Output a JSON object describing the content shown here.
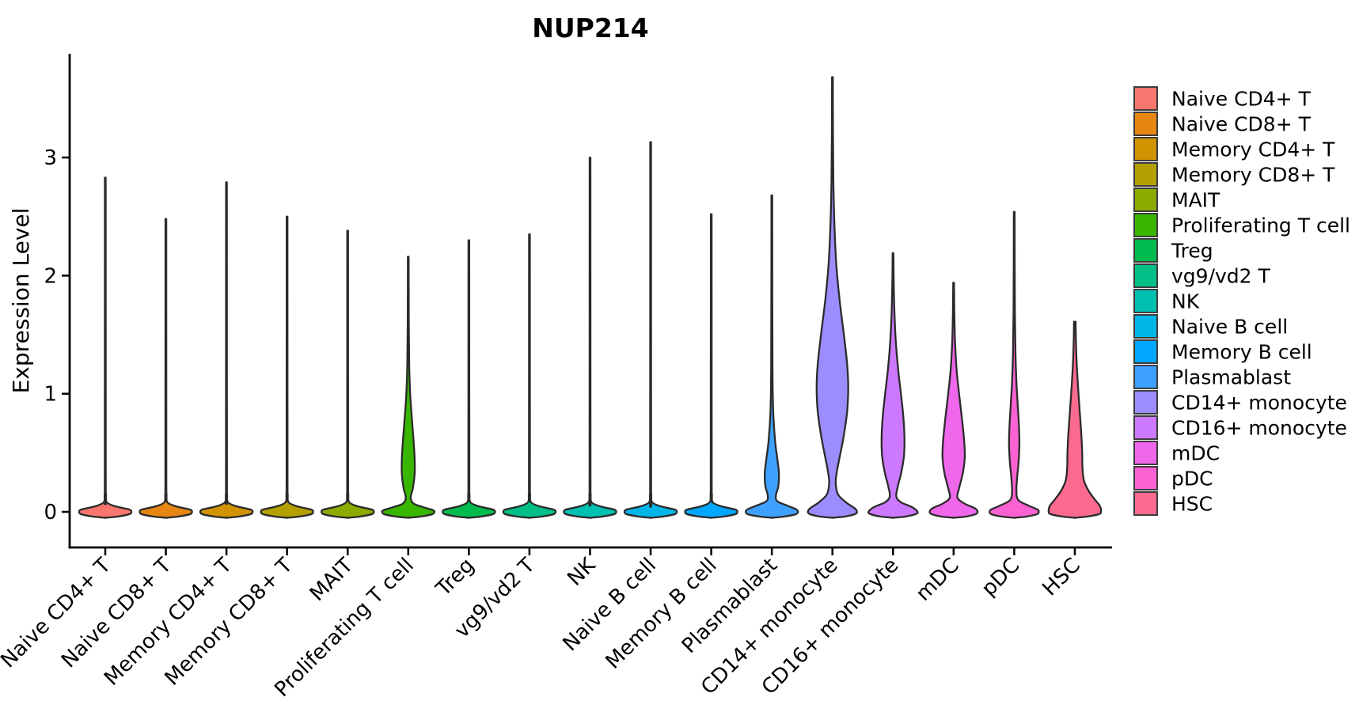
{
  "title": "NUP214",
  "axes": {
    "y_label": "Expression Level",
    "y_ticks": [
      "0",
      "1",
      "2",
      "3"
    ]
  },
  "legend": {
    "position": "right",
    "items": [
      {
        "label": "Naive CD4+ T",
        "color": "#F8766D"
      },
      {
        "label": "Naive CD8+ T",
        "color": "#E68613"
      },
      {
        "label": "Memory CD4+ T",
        "color": "#D19300"
      },
      {
        "label": "Memory CD8+ T",
        "color": "#B3A000"
      },
      {
        "label": "MAIT",
        "color": "#8CAB00"
      },
      {
        "label": "Proliferating T cell",
        "color": "#39B600"
      },
      {
        "label": "Treg",
        "color": "#00BB4E"
      },
      {
        "label": "vg9/vd2 T",
        "color": "#00C087"
      },
      {
        "label": "NK",
        "color": "#00C0B2"
      },
      {
        "label": "Naive B cell",
        "color": "#00B5E8"
      },
      {
        "label": "Memory B cell",
        "color": "#00A7FF"
      },
      {
        "label": "Plasmablast",
        "color": "#3FA1FF"
      },
      {
        "label": "CD14+ monocyte",
        "color": "#9C8DFF"
      },
      {
        "label": "CD16+ monocyte",
        "color": "#CD79FF"
      },
      {
        "label": "mDC",
        "color": "#EF67EB"
      },
      {
        "label": "pDC",
        "color": "#FA62D2"
      },
      {
        "label": "HSC",
        "color": "#FB6A8F"
      }
    ]
  },
  "chart_data": {
    "type": "violin",
    "title": "NUP214",
    "xlabel": "",
    "ylabel": "Expression Level",
    "ylim": [
      -0.3,
      3.9
    ],
    "yticks": [
      0,
      1,
      2,
      3
    ],
    "grid": false,
    "legend_position": "right",
    "categories": [
      "Naive CD4+ T",
      "Naive CD8+ T",
      "Memory CD4+ T",
      "Memory CD8+ T",
      "MAIT",
      "Proliferating T cell",
      "Treg",
      "vg9/vd2 T",
      "NK",
      "Naive B cell",
      "Memory B cell",
      "Plasmablast",
      "CD14+ monocyte",
      "CD16+ monocyte",
      "mDC",
      "pDC",
      "HSC"
    ],
    "series": [
      {
        "name": "Naive CD4+ T",
        "color": "#F8766D",
        "max_expression": 2.83,
        "profile": [
          [
            2.83,
            0.015
          ],
          [
            0.3,
            0.018
          ],
          [
            0.15,
            0.025
          ],
          [
            0.08,
            0.06
          ],
          [
            0.045,
            0.4
          ],
          [
            0.02,
            0.88
          ],
          [
            0.0,
            0.96
          ],
          [
            -0.02,
            0.88
          ],
          [
            -0.04,
            0.45
          ],
          [
            -0.05,
            0.0
          ]
        ]
      },
      {
        "name": "Naive CD8+ T",
        "color": "#E68613",
        "max_expression": 2.48,
        "profile": [
          [
            2.48,
            0.015
          ],
          [
            0.3,
            0.018
          ],
          [
            0.15,
            0.025
          ],
          [
            0.08,
            0.06
          ],
          [
            0.045,
            0.4
          ],
          [
            0.02,
            0.88
          ],
          [
            0.0,
            0.96
          ],
          [
            -0.02,
            0.88
          ],
          [
            -0.04,
            0.45
          ],
          [
            -0.05,
            0.0
          ]
        ]
      },
      {
        "name": "Memory CD4+ T",
        "color": "#D19300",
        "max_expression": 2.79,
        "profile": [
          [
            2.79,
            0.015
          ],
          [
            0.3,
            0.018
          ],
          [
            0.15,
            0.025
          ],
          [
            0.08,
            0.06
          ],
          [
            0.045,
            0.4
          ],
          [
            0.02,
            0.88
          ],
          [
            0.0,
            0.96
          ],
          [
            -0.02,
            0.88
          ],
          [
            -0.04,
            0.45
          ],
          [
            -0.05,
            0.0
          ]
        ]
      },
      {
        "name": "Memory CD8+ T",
        "color": "#B3A000",
        "max_expression": 2.5,
        "profile": [
          [
            2.5,
            0.015
          ],
          [
            0.3,
            0.018
          ],
          [
            0.15,
            0.025
          ],
          [
            0.08,
            0.06
          ],
          [
            0.045,
            0.4
          ],
          [
            0.02,
            0.88
          ],
          [
            0.0,
            0.96
          ],
          [
            -0.02,
            0.88
          ],
          [
            -0.04,
            0.45
          ],
          [
            -0.05,
            0.0
          ]
        ]
      },
      {
        "name": "MAIT",
        "color": "#8CAB00",
        "max_expression": 2.38,
        "profile": [
          [
            2.38,
            0.015
          ],
          [
            0.3,
            0.018
          ],
          [
            0.15,
            0.025
          ],
          [
            0.08,
            0.06
          ],
          [
            0.045,
            0.4
          ],
          [
            0.02,
            0.88
          ],
          [
            0.0,
            0.96
          ],
          [
            -0.02,
            0.88
          ],
          [
            -0.04,
            0.45
          ],
          [
            -0.05,
            0.0
          ]
        ]
      },
      {
        "name": "Proliferating T cell",
        "color": "#39B600",
        "max_expression": 2.16,
        "profile": [
          [
            2.16,
            0.015
          ],
          [
            1.6,
            0.02
          ],
          [
            1.25,
            0.035
          ],
          [
            1.0,
            0.07
          ],
          [
            0.8,
            0.13
          ],
          [
            0.62,
            0.19
          ],
          [
            0.45,
            0.235
          ],
          [
            0.32,
            0.235
          ],
          [
            0.2,
            0.17
          ],
          [
            0.12,
            0.09
          ],
          [
            0.07,
            0.2
          ],
          [
            0.04,
            0.55
          ],
          [
            0.015,
            0.9
          ],
          [
            0.0,
            0.96
          ],
          [
            -0.02,
            0.88
          ],
          [
            -0.04,
            0.45
          ],
          [
            -0.05,
            0.0
          ]
        ]
      },
      {
        "name": "Treg",
        "color": "#00BB4E",
        "max_expression": 2.3,
        "profile": [
          [
            2.3,
            0.015
          ],
          [
            0.3,
            0.018
          ],
          [
            0.15,
            0.025
          ],
          [
            0.08,
            0.06
          ],
          [
            0.045,
            0.4
          ],
          [
            0.02,
            0.88
          ],
          [
            0.0,
            0.96
          ],
          [
            -0.02,
            0.88
          ],
          [
            -0.04,
            0.45
          ],
          [
            -0.05,
            0.0
          ]
        ]
      },
      {
        "name": "vg9/vd2 T",
        "color": "#00C087",
        "max_expression": 2.35,
        "profile": [
          [
            2.35,
            0.015
          ],
          [
            0.3,
            0.018
          ],
          [
            0.15,
            0.025
          ],
          [
            0.08,
            0.06
          ],
          [
            0.045,
            0.4
          ],
          [
            0.02,
            0.88
          ],
          [
            0.0,
            0.96
          ],
          [
            -0.02,
            0.88
          ],
          [
            -0.04,
            0.45
          ],
          [
            -0.05,
            0.0
          ]
        ]
      },
      {
        "name": "NK",
        "color": "#00C0B2",
        "max_expression": 3.0,
        "profile": [
          [
            3.0,
            0.015
          ],
          [
            0.3,
            0.018
          ],
          [
            0.15,
            0.025
          ],
          [
            0.08,
            0.06
          ],
          [
            0.045,
            0.4
          ],
          [
            0.02,
            0.88
          ],
          [
            0.0,
            0.96
          ],
          [
            -0.02,
            0.88
          ],
          [
            -0.04,
            0.45
          ],
          [
            -0.05,
            0.0
          ]
        ]
      },
      {
        "name": "Naive B cell",
        "color": "#00B5E8",
        "max_expression": 3.13,
        "profile": [
          [
            3.13,
            0.015
          ],
          [
            0.3,
            0.018
          ],
          [
            0.15,
            0.025
          ],
          [
            0.08,
            0.06
          ],
          [
            0.045,
            0.4
          ],
          [
            0.02,
            0.88
          ],
          [
            0.0,
            0.96
          ],
          [
            -0.02,
            0.88
          ],
          [
            -0.04,
            0.45
          ],
          [
            -0.05,
            0.0
          ]
        ]
      },
      {
        "name": "Memory B cell",
        "color": "#00A7FF",
        "max_expression": 2.52,
        "profile": [
          [
            2.52,
            0.015
          ],
          [
            0.3,
            0.018
          ],
          [
            0.15,
            0.025
          ],
          [
            0.08,
            0.06
          ],
          [
            0.045,
            0.4
          ],
          [
            0.02,
            0.88
          ],
          [
            0.0,
            0.96
          ],
          [
            -0.02,
            0.88
          ],
          [
            -0.04,
            0.45
          ],
          [
            -0.05,
            0.0
          ]
        ]
      },
      {
        "name": "Plasmablast",
        "color": "#3FA1FF",
        "max_expression": 2.68,
        "profile": [
          [
            2.68,
            0.015
          ],
          [
            1.8,
            0.018
          ],
          [
            1.2,
            0.025
          ],
          [
            0.85,
            0.05
          ],
          [
            0.6,
            0.12
          ],
          [
            0.45,
            0.2
          ],
          [
            0.33,
            0.26
          ],
          [
            0.22,
            0.24
          ],
          [
            0.14,
            0.15
          ],
          [
            0.09,
            0.2
          ],
          [
            0.05,
            0.6
          ],
          [
            0.02,
            0.9
          ],
          [
            0.0,
            0.96
          ],
          [
            -0.02,
            0.88
          ],
          [
            -0.04,
            0.45
          ],
          [
            -0.05,
            0.0
          ]
        ]
      },
      {
        "name": "CD14+ monocyte",
        "color": "#9C8DFF",
        "max_expression": 3.68,
        "profile": [
          [
            3.68,
            0.015
          ],
          [
            3.2,
            0.02
          ],
          [
            2.8,
            0.035
          ],
          [
            2.45,
            0.07
          ],
          [
            2.1,
            0.14
          ],
          [
            1.8,
            0.26
          ],
          [
            1.5,
            0.42
          ],
          [
            1.25,
            0.54
          ],
          [
            1.05,
            0.58
          ],
          [
            0.85,
            0.54
          ],
          [
            0.65,
            0.42
          ],
          [
            0.48,
            0.28
          ],
          [
            0.35,
            0.17
          ],
          [
            0.25,
            0.12
          ],
          [
            0.15,
            0.2
          ],
          [
            0.08,
            0.5
          ],
          [
            0.03,
            0.82
          ],
          [
            0.0,
            0.9
          ],
          [
            -0.02,
            0.82
          ],
          [
            -0.04,
            0.45
          ],
          [
            -0.05,
            0.0
          ]
        ]
      },
      {
        "name": "CD16+ monocyte",
        "color": "#CD79FF",
        "max_expression": 2.19,
        "profile": [
          [
            2.19,
            0.015
          ],
          [
            1.95,
            0.025
          ],
          [
            1.7,
            0.05
          ],
          [
            1.45,
            0.1
          ],
          [
            1.2,
            0.19
          ],
          [
            1.0,
            0.29
          ],
          [
            0.8,
            0.38
          ],
          [
            0.62,
            0.42
          ],
          [
            0.47,
            0.4
          ],
          [
            0.33,
            0.3
          ],
          [
            0.22,
            0.18
          ],
          [
            0.13,
            0.12
          ],
          [
            0.08,
            0.3
          ],
          [
            0.04,
            0.7
          ],
          [
            0.0,
            0.9
          ],
          [
            -0.02,
            0.82
          ],
          [
            -0.04,
            0.45
          ],
          [
            -0.05,
            0.0
          ]
        ]
      },
      {
        "name": "mDC",
        "color": "#EF67EB",
        "max_expression": 1.94,
        "profile": [
          [
            1.94,
            0.015
          ],
          [
            1.7,
            0.025
          ],
          [
            1.45,
            0.05
          ],
          [
            1.2,
            0.11
          ],
          [
            1.0,
            0.2
          ],
          [
            0.8,
            0.3
          ],
          [
            0.62,
            0.38
          ],
          [
            0.47,
            0.41
          ],
          [
            0.33,
            0.34
          ],
          [
            0.2,
            0.2
          ],
          [
            0.12,
            0.14
          ],
          [
            0.07,
            0.4
          ],
          [
            0.03,
            0.78
          ],
          [
            0.0,
            0.88
          ],
          [
            -0.02,
            0.8
          ],
          [
            -0.04,
            0.45
          ],
          [
            -0.05,
            0.0
          ]
        ]
      },
      {
        "name": "pDC",
        "color": "#FA62D2",
        "max_expression": 2.54,
        "profile": [
          [
            2.54,
            0.015
          ],
          [
            2.1,
            0.018
          ],
          [
            1.7,
            0.025
          ],
          [
            1.35,
            0.045
          ],
          [
            1.1,
            0.08
          ],
          [
            0.9,
            0.13
          ],
          [
            0.72,
            0.175
          ],
          [
            0.57,
            0.19
          ],
          [
            0.42,
            0.16
          ],
          [
            0.3,
            0.11
          ],
          [
            0.18,
            0.08
          ],
          [
            0.1,
            0.15
          ],
          [
            0.05,
            0.55
          ],
          [
            0.02,
            0.85
          ],
          [
            0.0,
            0.9
          ],
          [
            -0.02,
            0.84
          ],
          [
            -0.04,
            0.45
          ],
          [
            -0.05,
            0.0
          ]
        ]
      },
      {
        "name": "HSC",
        "color": "#FB6A8F",
        "max_expression": 1.61,
        "profile": [
          [
            1.61,
            0.03
          ],
          [
            1.45,
            0.04
          ],
          [
            1.25,
            0.07
          ],
          [
            1.05,
            0.12
          ],
          [
            0.85,
            0.18
          ],
          [
            0.65,
            0.24
          ],
          [
            0.5,
            0.27
          ],
          [
            0.38,
            0.28
          ],
          [
            0.27,
            0.33
          ],
          [
            0.18,
            0.5
          ],
          [
            0.1,
            0.75
          ],
          [
            0.05,
            0.92
          ],
          [
            0.0,
            0.96
          ],
          [
            -0.02,
            0.88
          ],
          [
            -0.04,
            0.45
          ],
          [
            -0.05,
            0.0
          ]
        ]
      }
    ]
  }
}
